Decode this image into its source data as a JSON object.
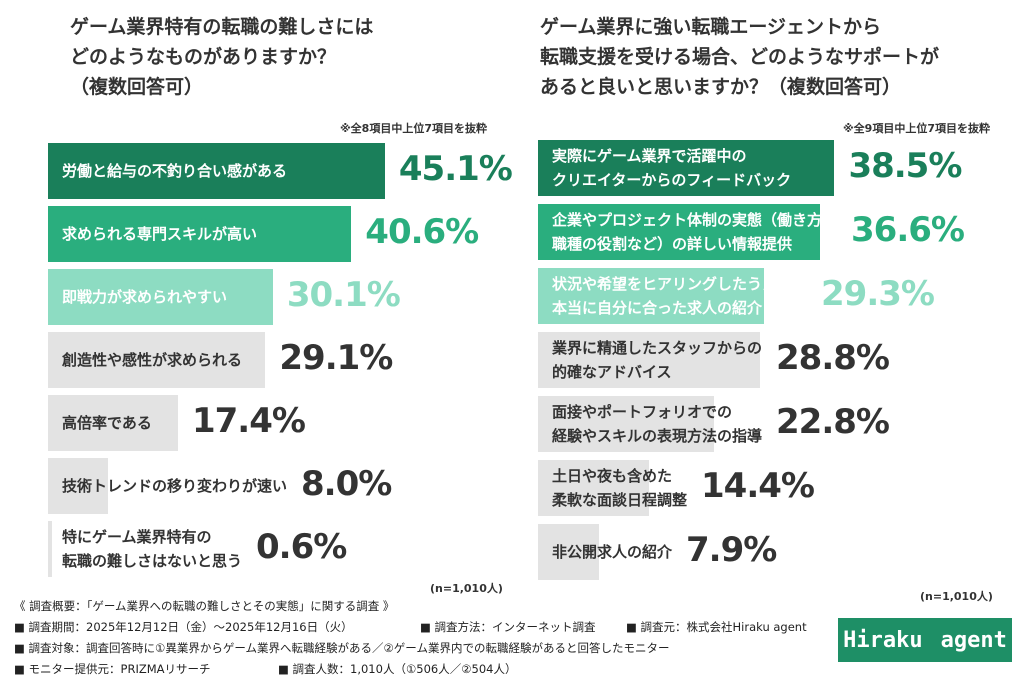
{
  "chart_data": [
    {
      "type": "hbar",
      "title": "ゲーム業界特有の転職の難しさには\nどのようなものがありますか？\n（複数回答可）",
      "note": "※全8項目中上位7項目を抜粋",
      "categories": [
        "労働と給与の不釣り合い感がある",
        "求められる専門スキルが高い",
        "即戦力が求められやすい",
        "創造性や感性が求められる",
        "高倍率である",
        "技術トレンドの移り変わりが速い",
        "特にゲーム業界特有の\n転職の難しさはないと思う"
      ],
      "values": [
        45.1,
        40.6,
        30.1,
        29.1,
        17.4,
        8.0,
        0.6
      ],
      "value_labels": [
        "45.1%",
        "40.6%",
        "30.1%",
        "29.1%",
        "17.4%",
        "8.0%",
        "0.6%"
      ],
      "colors": [
        "#1a7f5a",
        "#2aae7e",
        "#8ddcc2",
        "#e3e3e3",
        "#e3e3e3",
        "#e3e3e3",
        "#e3e3e3"
      ],
      "value_colors": [
        "#1a7f5a",
        "#2aae7e",
        "#8ddcc2",
        "#333333",
        "#333333",
        "#333333",
        "#333333"
      ],
      "sample": "(n=1,010人)"
    },
    {
      "type": "hbar",
      "title": "ゲーム業界に強い転職エージェントから\n転職支援を受ける場合、どのようなサポートが\nあると良いと思いますか？（複数回答可）",
      "note": "※全9項目中上位7項目を抜粋",
      "categories": [
        "実際にゲーム業界で活躍中の\nクリエイターからのフィードバック",
        "企業やプロジェクト体制の実態（働き方・\n職種の役割など）の詳しい情報提供",
        "状況や希望をヒアリングしたうえでの\n本当に自分に合った求人の紹介",
        "業界に精通したスタッフからの\n的確なアドバイス",
        "面接やポートフォリオでの\n経験やスキルの表現方法の指導",
        "土日や夜も含めた\n柔軟な面談日程調整",
        "非公開求人の紹介"
      ],
      "values": [
        38.5,
        36.6,
        29.3,
        28.8,
        22.8,
        14.4,
        7.9
      ],
      "value_labels": [
        "38.5%",
        "36.6%",
        "29.3%",
        "28.8%",
        "22.8%",
        "14.4%",
        "7.9%"
      ],
      "colors": [
        "#1a7f5a",
        "#2aae7e",
        "#8ddcc2",
        "#e3e3e3",
        "#e3e3e3",
        "#e3e3e3",
        "#e3e3e3"
      ],
      "value_colors": [
        "#1a7f5a",
        "#2aae7e",
        "#8ddcc2",
        "#333333",
        "#333333",
        "#333333",
        "#333333"
      ],
      "sample": "(n=1,010人)"
    }
  ],
  "footer": {
    "summary": "《 調査概要：「ゲーム業界への転職の難しさとその実態」に関する調査 》",
    "lines": [
      [
        "■ 調査期間：2025年12月12日（金）〜2025年12月16日（火）",
        "■ 調査方法：インターネット調査",
        "■ 調査元：株式会社Hiraku agent"
      ],
      [
        "■ 調査対象：調査回答時に①異業界からゲーム業界へ転職経験がある／②ゲーム業界内での転職経験があると回答したモニター"
      ],
      [
        "■ モニター提供元：PRIZMAリサーチ",
        "■ 調査人数：1,010人（①506人／②504人）"
      ]
    ]
  },
  "logo": [
    "Hiraku",
    "agent"
  ]
}
